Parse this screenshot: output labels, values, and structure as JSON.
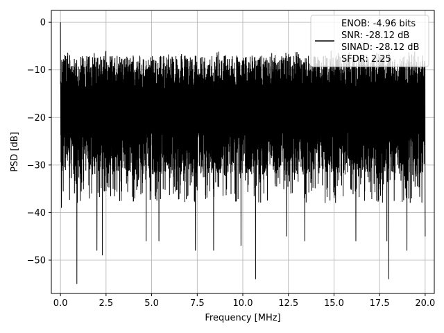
{
  "chart_data": {
    "type": "line",
    "title": "",
    "xlabel": "Frequency [MHz]",
    "ylabel": "PSD [dB]",
    "xlim": [
      -0.5,
      20.5
    ],
    "ylim": [
      -57,
      2.5
    ],
    "xticks": [
      0.0,
      2.5,
      5.0,
      7.5,
      10.0,
      12.5,
      15.0,
      17.5,
      20.0
    ],
    "xtick_labels": [
      "0.0",
      "2.5",
      "5.0",
      "7.5",
      "10.0",
      "12.5",
      "15.0",
      "17.5",
      "20.0"
    ],
    "yticks": [
      0,
      -10,
      -20,
      -30,
      -40,
      -50
    ],
    "ytick_labels": [
      "0",
      "−10",
      "−20",
      "−30",
      "−40",
      "−50"
    ],
    "grid": true,
    "legend_position": "top-right",
    "legend": {
      "lines": [
        "ENOB: -4.96 bits",
        "SNR: -28.12 dB",
        "SINAD: -28.12 dB",
        "SFDR: 2.25"
      ]
    },
    "series": [
      {
        "color": "#000000",
        "x_range": [
          0.0,
          20.0
        ],
        "peak_at_0": 0.0,
        "upper_envelope_db": -7,
        "median_db": -19,
        "lower_envelope_db": -32,
        "deep_dips": [
          {
            "x": 0.05,
            "y": -39
          },
          {
            "x": 0.9,
            "y": -55
          },
          {
            "x": 2.0,
            "y": -48
          },
          {
            "x": 2.3,
            "y": -49
          },
          {
            "x": 4.7,
            "y": -46
          },
          {
            "x": 5.4,
            "y": -46
          },
          {
            "x": 7.4,
            "y": -48
          },
          {
            "x": 8.4,
            "y": -48
          },
          {
            "x": 9.9,
            "y": -47
          },
          {
            "x": 10.7,
            "y": -54
          },
          {
            "x": 12.4,
            "y": -45
          },
          {
            "x": 13.4,
            "y": -46
          },
          {
            "x": 16.2,
            "y": -46
          },
          {
            "x": 17.9,
            "y": -46
          },
          {
            "x": 18.0,
            "y": -54
          },
          {
            "x": 19.0,
            "y": -48
          },
          {
            "x": 20.0,
            "y": -45
          }
        ]
      }
    ]
  }
}
